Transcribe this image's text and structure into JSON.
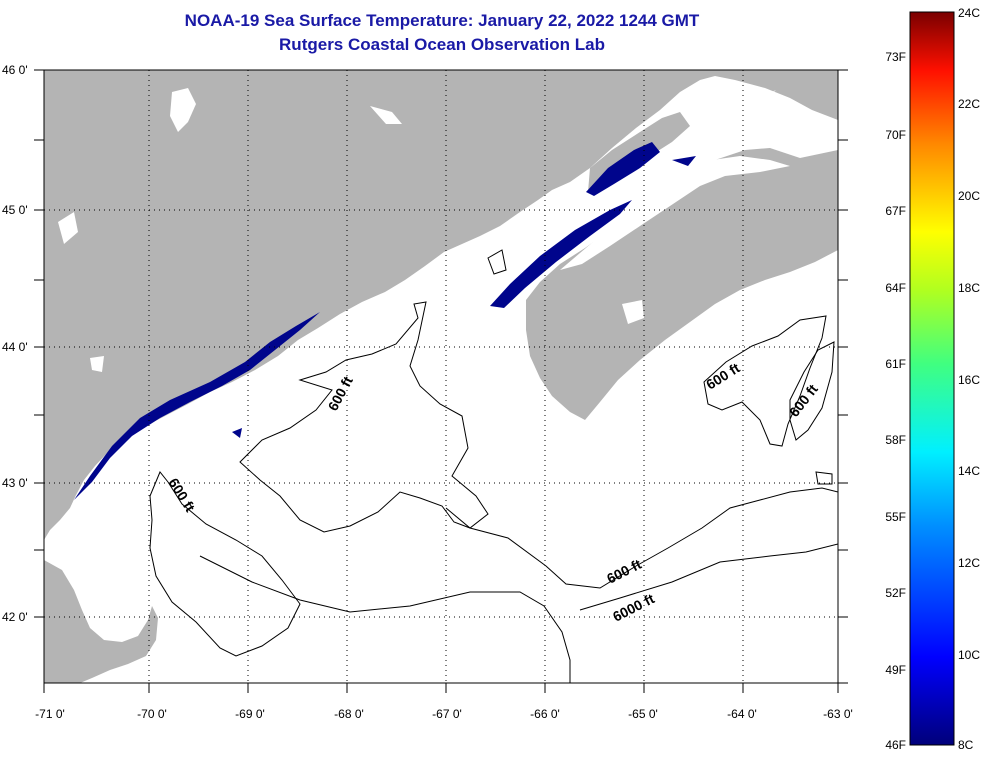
{
  "title_line1": "NOAA-19 Sea Surface Temperature:  January 22, 2022 1244 GMT",
  "title_line2": "Rutgers Coastal Ocean Observation Lab",
  "colors": {
    "land": "#b4b4b4",
    "ocean_white": "#ffffff",
    "cold_water": "#00058c",
    "title": "#1a1aa6"
  },
  "axes": {
    "x_ticks": [
      "-71 0'",
      "-70 0'",
      "-69 0'",
      "-68 0'",
      "-67 0'",
      "-66 0'",
      "-65 0'",
      "-64 0'",
      "-63 0'"
    ],
    "y_ticks": [
      "46 0'",
      "45 0'",
      "44 0'",
      "43 0'",
      "42 0'"
    ]
  },
  "contour_labels": [
    "600 ft",
    "600 ft",
    "600 ft",
    "600 ft",
    "600 ft",
    "6000 ft"
  ],
  "colorbar": {
    "fahrenheit_labels": [
      "73F",
      "70F",
      "67F",
      "64F",
      "61F",
      "58F",
      "55F",
      "52F",
      "49F",
      "46F"
    ],
    "celsius_labels": [
      "24C",
      "22C",
      "20C",
      "18C",
      "16C",
      "14C",
      "12C",
      "10C",
      "8C"
    ]
  }
}
